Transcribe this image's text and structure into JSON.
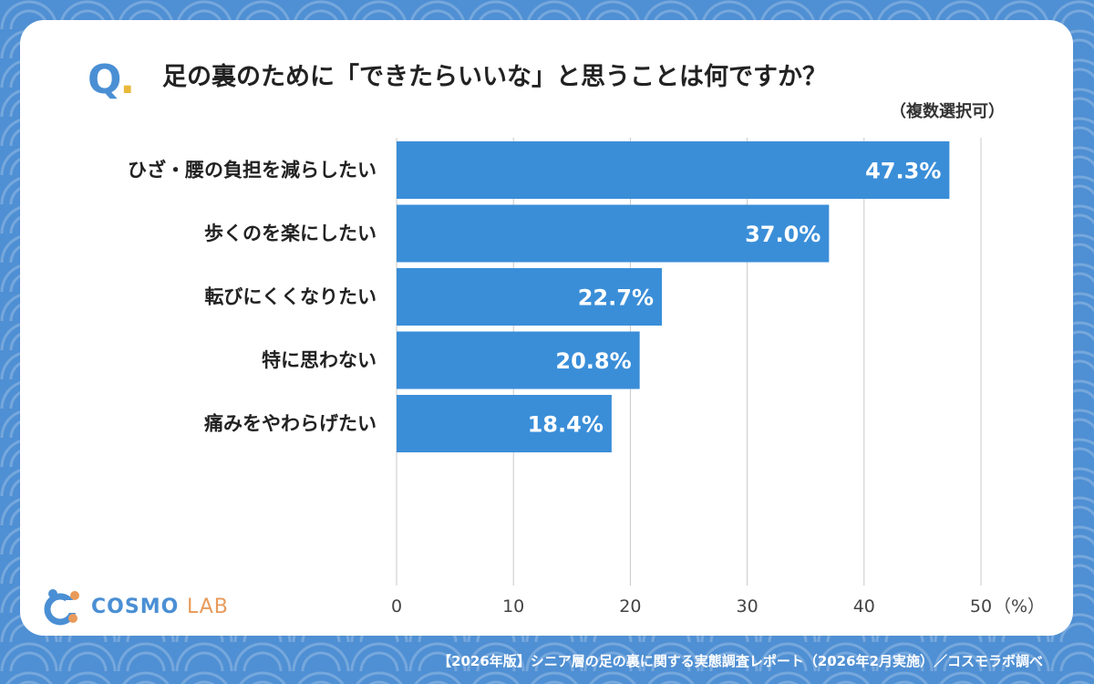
{
  "header": {
    "q_mark": "Q",
    "q_dot": ".",
    "question": "足の裏のために「できたらいいな」と思うことは何ですか？",
    "note": "（複数選択可）"
  },
  "brand": {
    "logo_main": "COSMO",
    "logo_sub": "LAB"
  },
  "footer": {
    "source": "【2026年版】シニア層の足の裏に関する実態調査レポート（2026年2月実施）／コスモラボ調べ"
  },
  "colors": {
    "bar": "#3a8ed8",
    "accent": "#4a8fd4",
    "background": "#4f8fd3"
  },
  "chart_data": {
    "type": "bar",
    "orientation": "horizontal",
    "categories": [
      "ひざ・腰の負担を減らしたい",
      "歩くのを楽にしたい",
      "転びにくくなりたい",
      "特に思わない",
      "痛みをやわらげたい"
    ],
    "values": [
      47.3,
      37.0,
      22.7,
      20.8,
      18.4
    ],
    "value_labels": [
      "47.3%",
      "37.0%",
      "22.7%",
      "20.8%",
      "18.4%"
    ],
    "xticks": [
      "0",
      "10",
      "20",
      "30",
      "40",
      "50"
    ],
    "xlim": [
      0,
      50
    ],
    "unit": "（%）",
    "grid": true
  }
}
